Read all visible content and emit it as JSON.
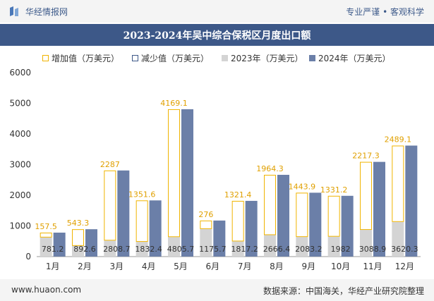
{
  "header": {
    "brand": "华经情报网",
    "tagline": "专业严谨 • 客观科学"
  },
  "title": "2023-2024年吴中综合保税区月度出口额",
  "legend": {
    "increase": "增加值（万美元）",
    "decrease": "减少值（万美元）",
    "y2023": "2023年（万美元）",
    "y2024": "2024年（万美元）"
  },
  "footer": {
    "website": "www.huaon.com",
    "source": "数据来源：中国海关，华经产业研究院整理"
  },
  "colors": {
    "increase_border": "#f0b400",
    "decrease_border": "#3d5888",
    "bar_2023": "#d4d4d4",
    "bar_2024": "#6b7fa8",
    "title_bg": "#3d5888"
  },
  "chart_data": {
    "type": "bar",
    "categories": [
      "1月",
      "2月",
      "3月",
      "4月",
      "5月",
      "6月",
      "7月",
      "8月",
      "9月",
      "10月",
      "11月",
      "12月"
    ],
    "ylim": [
      0,
      6000
    ],
    "yticks": [
      0,
      1000,
      2000,
      3000,
      4000,
      5000,
      6000
    ],
    "series": [
      {
        "name": "2023年（万美元）",
        "values": [
          623.7,
          349.0,
          521.7,
          480.8,
          636.6,
          899.7,
          495.6,
          702.1,
          639.3,
          650.7,
          871.6,
          1131.2
        ]
      },
      {
        "name": "2024年（万美元）",
        "values": [
          781.2,
          892.6,
          2808.7,
          1832.4,
          4805.7,
          1175.7,
          1817.2,
          2666.4,
          2083.2,
          1982,
          3088.9,
          3620.3
        ]
      },
      {
        "name": "增加值（万美元）",
        "values": [
          157.5,
          543.3,
          2287,
          1351.6,
          4169.1,
          276,
          1321.4,
          1964.3,
          1443.9,
          1331.2,
          2217.3,
          2489.1
        ]
      }
    ]
  }
}
